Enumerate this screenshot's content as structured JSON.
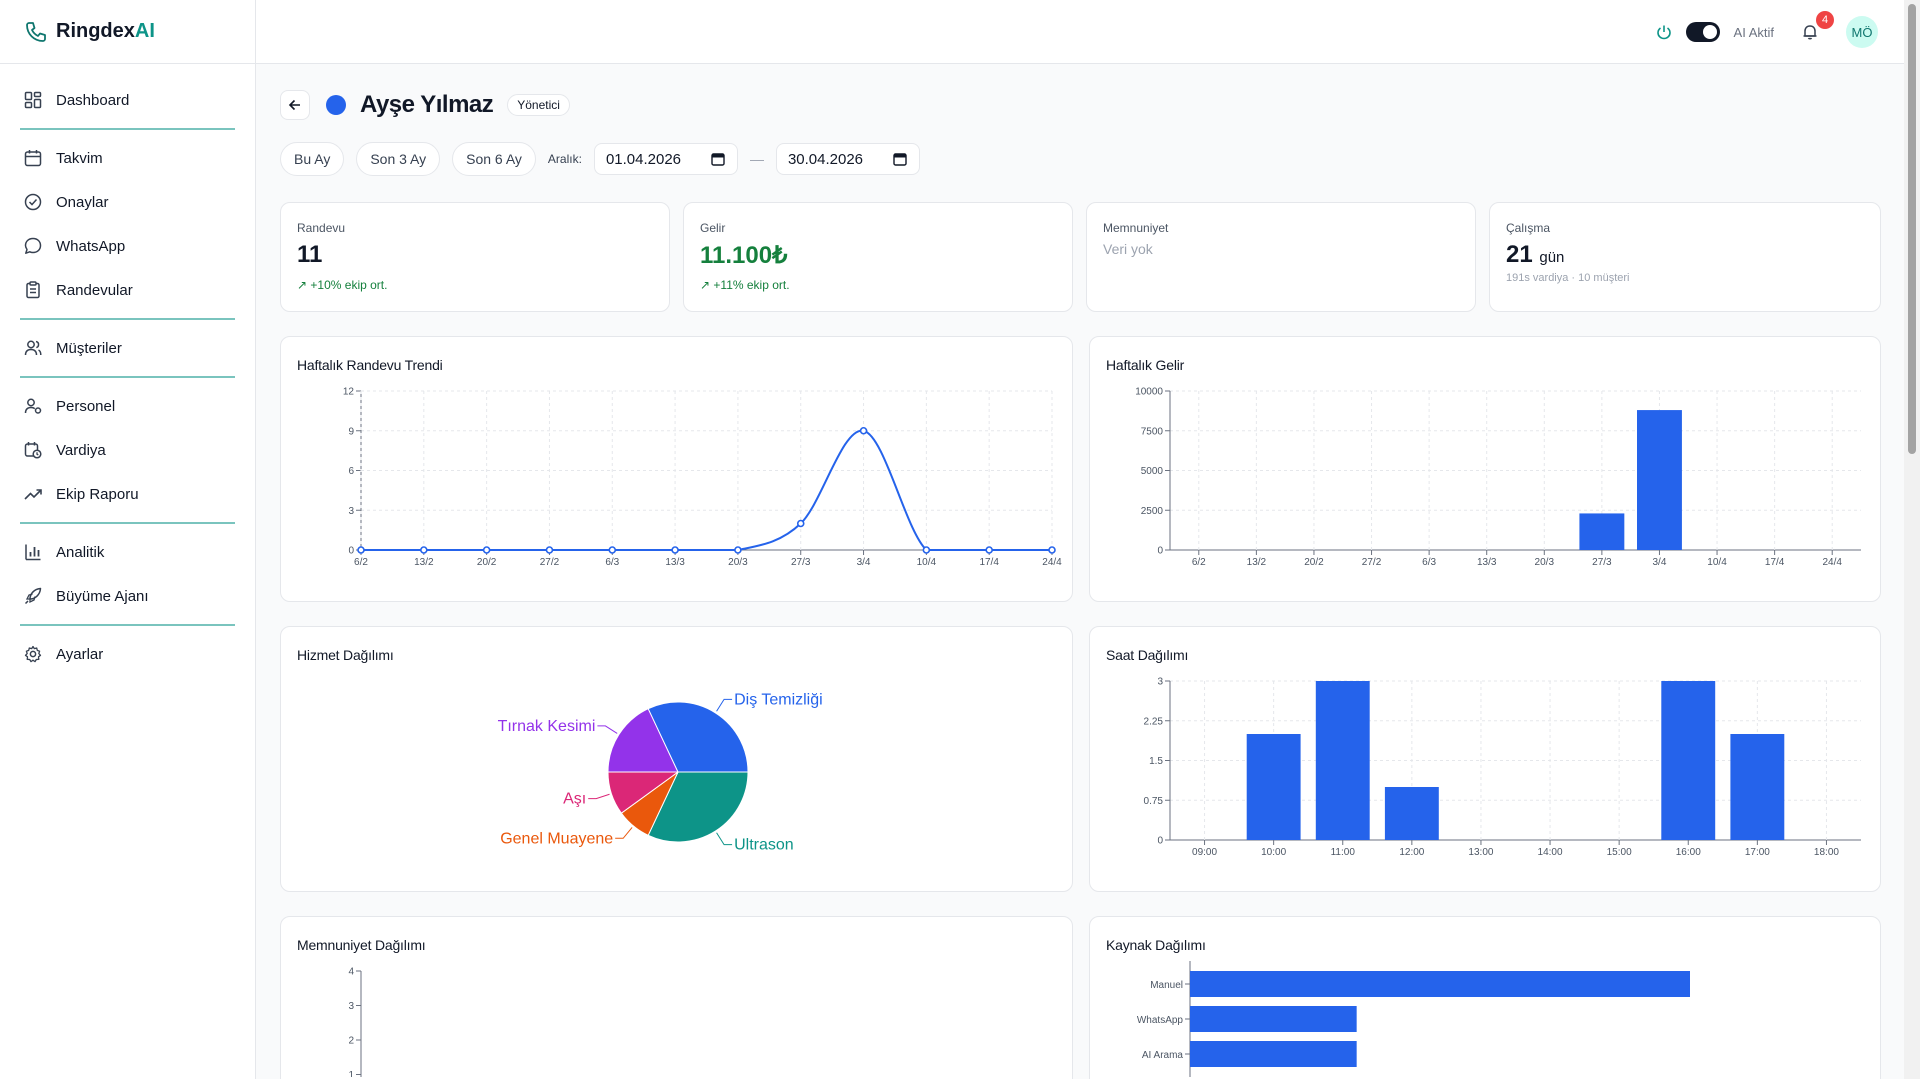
{
  "brand": {
    "name_prefix": "Ringdex",
    "name_suffix": "AI"
  },
  "sidebar": {
    "items": [
      {
        "label": "Dashboard",
        "icon": "dashboard-icon"
      },
      {
        "label": "Takvim",
        "icon": "calendar-icon"
      },
      {
        "label": "Onaylar",
        "icon": "check-circle-icon"
      },
      {
        "label": "WhatsApp",
        "icon": "chat-icon"
      },
      {
        "label": "Randevular",
        "icon": "clipboard-icon"
      },
      {
        "label": "Müşteriler",
        "icon": "users-icon"
      },
      {
        "label": "Personel",
        "icon": "staff-icon"
      },
      {
        "label": "Vardiya",
        "icon": "calendar-clock-icon"
      },
      {
        "label": "Ekip Raporu",
        "icon": "trend-icon"
      },
      {
        "label": "Analitik",
        "icon": "bar-chart-icon"
      },
      {
        "label": "Büyüme Ajanı",
        "icon": "rocket-icon"
      },
      {
        "label": "Ayarlar",
        "icon": "gear-icon"
      }
    ]
  },
  "topbar": {
    "ai_label": "AI Aktif",
    "notification_count": "4",
    "avatar_initials": "MÖ"
  },
  "profile": {
    "name": "Ayşe Yılmaz",
    "role": "Yönetici",
    "color": "#2563eb"
  },
  "filters": {
    "presets": [
      "Bu Ay",
      "Son 3 Ay",
      "Son 6 Ay"
    ],
    "range_label": "Aralık:",
    "start_date": "01.04.2026",
    "end_date": "30.04.2026",
    "separator": "—"
  },
  "kpis": [
    {
      "title": "Randevu",
      "value": "11",
      "unit": "",
      "sub": "+10% ekip ort.",
      "trend": "up"
    },
    {
      "title": "Gelir",
      "value": "11.100₺",
      "unit": "",
      "sub": "+11% ekip ort.",
      "trend": "up"
    },
    {
      "title": "Memnuniyet",
      "value": "",
      "unit": "",
      "sub": "Veri yok",
      "trend": "none"
    },
    {
      "title": "Çalışma",
      "value": "21",
      "unit": "gün",
      "sub": "191s vardiya · 10 müşteri",
      "trend": "none"
    }
  ],
  "colors": {
    "accent": "#2563eb",
    "brand": "#0d9488",
    "positive": "#15803d"
  },
  "chart_data": [
    {
      "title": "Haftalık Randevu Trendi",
      "type": "line",
      "categories": [
        "6/2",
        "13/2",
        "20/2",
        "27/2",
        "6/3",
        "13/3",
        "20/3",
        "27/3",
        "3/4",
        "10/4",
        "17/4",
        "24/4"
      ],
      "values": [
        0,
        0,
        0,
        0,
        0,
        0,
        0,
        2,
        9,
        0,
        0,
        0
      ],
      "ylim": [
        0,
        12
      ],
      "yticks": [
        0,
        3,
        6,
        9,
        12
      ],
      "grid": true
    },
    {
      "title": "Haftalık Gelir",
      "type": "bar",
      "categories": [
        "6/2",
        "13/2",
        "20/2",
        "27/2",
        "6/3",
        "13/3",
        "20/3",
        "27/3",
        "3/4",
        "10/4",
        "17/4",
        "24/4"
      ],
      "values": [
        0,
        0,
        0,
        0,
        0,
        0,
        0,
        2300,
        8800,
        0,
        0,
        0
      ],
      "ylim": [
        0,
        10000
      ],
      "yticks": [
        0,
        2500,
        5000,
        7500,
        10000
      ],
      "grid": true
    },
    {
      "title": "Hizmet Dağılımı",
      "type": "pie",
      "slices": [
        {
          "label": "Ultrason",
          "value": 32,
          "color": "#0d9488"
        },
        {
          "label": "Genel Muayene",
          "value": 8,
          "color": "#ea580c"
        },
        {
          "label": "Aşı",
          "value": 10,
          "color": "#db2777"
        },
        {
          "label": "Tırnak Kesimi",
          "value": 18,
          "color": "#9333ea"
        },
        {
          "label": "Diş Temizliği",
          "value": 32,
          "color": "#2563eb"
        }
      ]
    },
    {
      "title": "Saat Dağılımı",
      "type": "bar",
      "categories": [
        "09:00",
        "10:00",
        "11:00",
        "12:00",
        "13:00",
        "14:00",
        "15:00",
        "16:00",
        "17:00",
        "18:00"
      ],
      "values": [
        0,
        2,
        3,
        1,
        0,
        0,
        0,
        3,
        2,
        0
      ],
      "ylim": [
        0,
        3
      ],
      "yticks": [
        "0",
        "0.75",
        "1.5",
        "2.25",
        "3"
      ],
      "grid": true
    },
    {
      "title": "Memnuniyet Dağılımı",
      "type": "bar",
      "categories": [],
      "values": [],
      "ylim": [
        0,
        4
      ],
      "yticks": [
        "1",
        "2",
        "3",
        "4"
      ],
      "grid": true
    },
    {
      "title": "Kaynak Dağılımı",
      "type": "bar",
      "orientation": "horizontal",
      "categories": [
        "Manuel",
        "WhatsApp",
        "AI Arama"
      ],
      "values": [
        6,
        2,
        2
      ],
      "grid": false
    }
  ]
}
